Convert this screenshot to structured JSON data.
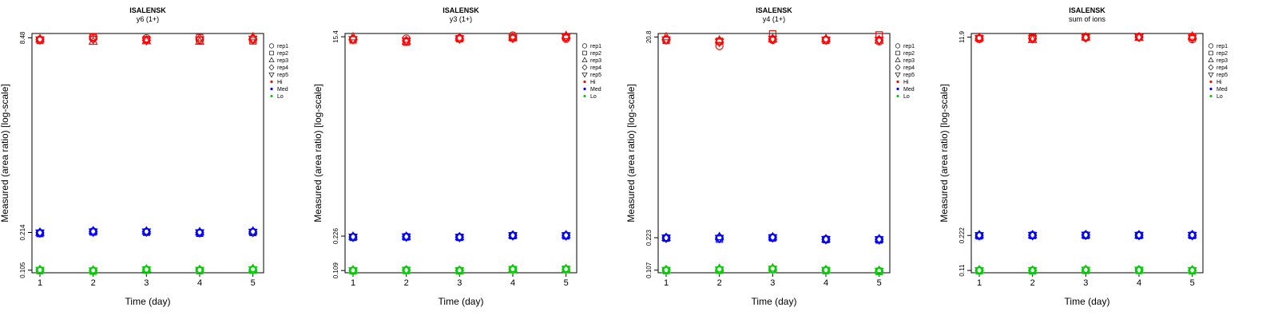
{
  "figure": {
    "xlabel": "Time (day)",
    "ylabel": "Measured (area ratio) [log-scale]"
  },
  "legend": {
    "reps": [
      {
        "label": "rep1",
        "shape": "circle"
      },
      {
        "label": "rep2",
        "shape": "square"
      },
      {
        "label": "rep3",
        "shape": "triangle-up"
      },
      {
        "label": "rep4",
        "shape": "diamond"
      },
      {
        "label": "rep5",
        "shape": "triangle-down"
      }
    ],
    "levels": [
      {
        "label": "Hi",
        "color": "#ff0000"
      },
      {
        "label": "Med",
        "color": "#0000ff"
      },
      {
        "label": "Lo",
        "color": "#00cc00"
      }
    ]
  },
  "chart_data": [
    {
      "type": "scatter",
      "title": "ISALENSK",
      "subtitle": "y6 (1+)",
      "xlabel": "Time (day)",
      "ylabel": "Measured (area ratio) [log-scale]",
      "x": [
        1,
        2,
        3,
        4,
        5
      ],
      "ylim": [
        0.1,
        9.2
      ],
      "yticks": [
        0.105,
        0.214,
        8.48
      ],
      "log_y": true,
      "series": [
        {
          "level": "Hi",
          "color": "#ff0000",
          "points": [
            {
              "rep": "rep1",
              "values": [
                8.2,
                8.5,
                8.4,
                8.1,
                8.2
              ]
            },
            {
              "rep": "rep2",
              "values": [
                8.1,
                8.6,
                8.2,
                8.5,
                8.0
              ]
            },
            {
              "rep": "rep3",
              "values": [
                8.3,
                7.9,
                8.0,
                7.9,
                8.6
              ]
            },
            {
              "rep": "rep4",
              "values": [
                8.2,
                8.3,
                8.1,
                8.3,
                8.3
              ]
            },
            {
              "rep": "rep5",
              "values": [
                8.2,
                8.3,
                8.1,
                8.2,
                8.3
              ]
            }
          ]
        },
        {
          "level": "Med",
          "color": "#0000ff",
          "points": [
            {
              "rep": "rep1",
              "values": [
                0.212,
                0.218,
                0.217,
                0.213,
                0.216
              ]
            },
            {
              "rep": "rep2",
              "values": [
                0.21,
                0.216,
                0.215,
                0.211,
                0.214
              ]
            },
            {
              "rep": "rep3",
              "values": [
                0.214,
                0.22,
                0.219,
                0.216,
                0.219
              ]
            },
            {
              "rep": "rep4",
              "values": [
                0.213,
                0.217,
                0.217,
                0.214,
                0.216
              ]
            },
            {
              "rep": "rep5",
              "values": [
                0.213,
                0.217,
                0.217,
                0.214,
                0.216
              ]
            }
          ]
        },
        {
          "level": "Lo",
          "color": "#00cc00",
          "points": [
            {
              "rep": "rep1",
              "values": [
                0.105,
                0.104,
                0.106,
                0.105,
                0.106
              ]
            },
            {
              "rep": "rep2",
              "values": [
                0.104,
                0.103,
                0.105,
                0.104,
                0.105
              ]
            },
            {
              "rep": "rep3",
              "values": [
                0.106,
                0.105,
                0.107,
                0.106,
                0.108
              ]
            },
            {
              "rep": "rep4",
              "values": [
                0.105,
                0.104,
                0.106,
                0.105,
                0.106
              ]
            },
            {
              "rep": "rep5",
              "values": [
                0.105,
                0.104,
                0.106,
                0.105,
                0.106
              ]
            }
          ]
        }
      ]
    },
    {
      "type": "scatter",
      "title": "ISALENSK",
      "subtitle": "y3 (1+)",
      "xlabel": "Time (day)",
      "ylabel": "Measured (area ratio) [log-scale]",
      "x": [
        1,
        2,
        3,
        4,
        5
      ],
      "ylim": [
        0.104,
        16.5
      ],
      "yticks": [
        0.109,
        0.226,
        15.4
      ],
      "log_y": true,
      "series": [
        {
          "level": "Hi",
          "color": "#ff0000",
          "points": [
            {
              "rep": "rep1",
              "values": [
                14.5,
                14.8,
                14.9,
                15.8,
                14.8
              ]
            },
            {
              "rep": "rep2",
              "values": [
                14.4,
                13.8,
                14.8,
                15.0,
                15.3
              ]
            },
            {
              "rep": "rep3",
              "values": [
                15.3,
                14.0,
                15.1,
                15.2,
                15.7
              ]
            },
            {
              "rep": "rep4",
              "values": [
                14.6,
                14.1,
                14.8,
                15.0,
                15.2
              ]
            },
            {
              "rep": "rep5",
              "values": [
                14.6,
                14.1,
                14.8,
                15.0,
                15.2
              ]
            }
          ]
        },
        {
          "level": "Med",
          "color": "#0000ff",
          "points": [
            {
              "rep": "rep1",
              "values": [
                0.222,
                0.223,
                0.221,
                0.229,
                0.229
              ]
            },
            {
              "rep": "rep2",
              "values": [
                0.22,
                0.222,
                0.22,
                0.228,
                0.227
              ]
            },
            {
              "rep": "rep3",
              "values": [
                0.224,
                0.224,
                0.222,
                0.23,
                0.231
              ]
            },
            {
              "rep": "rep4",
              "values": [
                0.222,
                0.223,
                0.221,
                0.229,
                0.229
              ]
            },
            {
              "rep": "rep5",
              "values": [
                0.222,
                0.223,
                0.221,
                0.229,
                0.229
              ]
            }
          ]
        },
        {
          "level": "Lo",
          "color": "#00cc00",
          "points": [
            {
              "rep": "rep1",
              "values": [
                0.109,
                0.11,
                0.109,
                0.112,
                0.112
              ]
            },
            {
              "rep": "rep2",
              "values": [
                0.108,
                0.109,
                0.108,
                0.111,
                0.112
              ]
            },
            {
              "rep": "rep3",
              "values": [
                0.11,
                0.11,
                0.109,
                0.113,
                0.113
              ]
            },
            {
              "rep": "rep4",
              "values": [
                0.109,
                0.11,
                0.109,
                0.112,
                0.112
              ]
            },
            {
              "rep": "rep5",
              "values": [
                0.109,
                0.11,
                0.109,
                0.112,
                0.112
              ]
            }
          ]
        }
      ]
    },
    {
      "type": "scatter",
      "title": "ISALENSK",
      "subtitle": "y4 (1+)",
      "xlabel": "Time (day)",
      "ylabel": "Measured (area ratio) [log-scale]",
      "x": [
        1,
        2,
        3,
        4,
        5
      ],
      "ylim": [
        0.101,
        22.5
      ],
      "yticks": [
        0.107,
        0.223,
        20.8
      ],
      "log_y": true,
      "series": [
        {
          "level": "Hi",
          "color": "#ff0000",
          "points": [
            {
              "rep": "rep1",
              "values": [
                19.5,
                17.0,
                19.5,
                19.5,
                18.9
              ]
            },
            {
              "rep": "rep2",
              "values": [
                19.3,
                18.9,
                22.3,
                19.3,
                21.8
              ]
            },
            {
              "rep": "rep3",
              "values": [
                20.8,
                19.3,
                19.9,
                19.9,
                19.3
              ]
            },
            {
              "rep": "rep4",
              "values": [
                19.6,
                18.6,
                19.9,
                19.5,
                19.4
              ]
            },
            {
              "rep": "rep5",
              "values": [
                19.6,
                18.6,
                19.9,
                19.5,
                19.4
              ]
            }
          ]
        },
        {
          "level": "Med",
          "color": "#0000ff",
          "points": [
            {
              "rep": "rep1",
              "values": [
                0.222,
                0.222,
                0.224,
                0.215,
                0.214
              ]
            },
            {
              "rep": "rep2",
              "values": [
                0.221,
                0.216,
                0.222,
                0.214,
                0.212
              ]
            },
            {
              "rep": "rep3",
              "values": [
                0.223,
                0.227,
                0.226,
                0.216,
                0.216
              ]
            },
            {
              "rep": "rep4",
              "values": [
                0.222,
                0.221,
                0.224,
                0.215,
                0.214
              ]
            },
            {
              "rep": "rep5",
              "values": [
                0.222,
                0.221,
                0.224,
                0.215,
                0.214
              ]
            }
          ]
        },
        {
          "level": "Lo",
          "color": "#00cc00",
          "points": [
            {
              "rep": "rep1",
              "values": [
                0.107,
                0.108,
                0.11,
                0.107,
                0.105
              ]
            },
            {
              "rep": "rep2",
              "values": [
                0.106,
                0.107,
                0.109,
                0.106,
                0.104
              ]
            },
            {
              "rep": "rep3",
              "values": [
                0.108,
                0.111,
                0.112,
                0.108,
                0.106
              ]
            },
            {
              "rep": "rep4",
              "values": [
                0.107,
                0.108,
                0.11,
                0.107,
                0.105
              ]
            },
            {
              "rep": "rep5",
              "values": [
                0.107,
                0.108,
                0.11,
                0.107,
                0.105
              ]
            }
          ]
        }
      ]
    },
    {
      "type": "scatter",
      "title": "ISALENSK",
      "subtitle": "sum of ions",
      "xlabel": "Time (day)",
      "ylabel": "Measured (area ratio) [log-scale]",
      "x": [
        1,
        2,
        3,
        4,
        5
      ],
      "ylim": [
        0.105,
        12.8
      ],
      "yticks": [
        0.11,
        0.222,
        11.9
      ],
      "log_y": true,
      "series": [
        {
          "level": "Hi",
          "color": "#ff0000",
          "points": [
            {
              "rep": "rep1",
              "values": [
                11.5,
                11.6,
                11.8,
                12.0,
                11.4
              ]
            },
            {
              "rep": "rep2",
              "values": [
                11.6,
                11.8,
                11.9,
                12.0,
                11.9
              ]
            },
            {
              "rep": "rep3",
              "values": [
                11.8,
                11.3,
                11.9,
                11.8,
                12.1
              ]
            },
            {
              "rep": "rep4",
              "values": [
                11.6,
                11.6,
                11.8,
                11.9,
                11.7
              ]
            },
            {
              "rep": "rep5",
              "values": [
                11.6,
                11.6,
                11.8,
                11.9,
                11.7
              ]
            }
          ]
        },
        {
          "level": "Med",
          "color": "#0000ff",
          "points": [
            {
              "rep": "rep1",
              "values": [
                0.222,
                0.223,
                0.224,
                0.223,
                0.223
              ]
            },
            {
              "rep": "rep2",
              "values": [
                0.22,
                0.222,
                0.222,
                0.222,
                0.222
              ]
            },
            {
              "rep": "rep3",
              "values": [
                0.224,
                0.224,
                0.225,
                0.224,
                0.225
              ]
            },
            {
              "rep": "rep4",
              "values": [
                0.222,
                0.223,
                0.224,
                0.223,
                0.223
              ]
            },
            {
              "rep": "rep5",
              "values": [
                0.222,
                0.223,
                0.224,
                0.223,
                0.223
              ]
            }
          ]
        },
        {
          "level": "Lo",
          "color": "#00cc00",
          "points": [
            {
              "rep": "rep1",
              "values": [
                0.11,
                0.11,
                0.111,
                0.111,
                0.11
              ]
            },
            {
              "rep": "rep2",
              "values": [
                0.109,
                0.109,
                0.11,
                0.11,
                0.109
              ]
            },
            {
              "rep": "rep3",
              "values": [
                0.111,
                0.11,
                0.112,
                0.111,
                0.111
              ]
            },
            {
              "rep": "rep4",
              "values": [
                0.11,
                0.11,
                0.111,
                0.111,
                0.11
              ]
            },
            {
              "rep": "rep5",
              "values": [
                0.11,
                0.11,
                0.111,
                0.111,
                0.11
              ]
            }
          ]
        }
      ]
    }
  ]
}
